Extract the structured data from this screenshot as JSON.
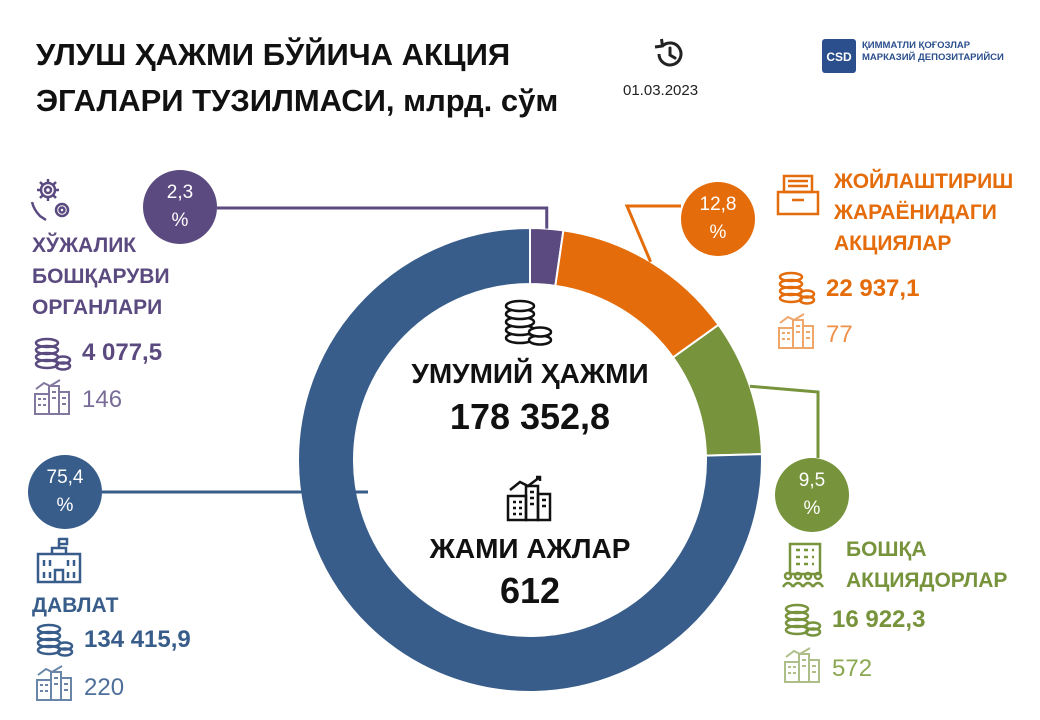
{
  "header": {
    "title_line1": "УЛУШ ҲАЖМИ БЎЙИЧА АКЦИЯ",
    "title_line2": "ЭГАЛАРИ ТУЗИЛМАСИ, млрд. сўм",
    "date": "01.03.2023",
    "logo_line1": "ҚИММАТЛИ ҚОҒОЗЛАР",
    "logo_line2": "МАРКАЗИЙ ДЕПОЗИТАРИЙСИ",
    "logo_mark": "CSD"
  },
  "center": {
    "volume_label": "УМУМИЙ ҲАЖМИ",
    "volume_value": "178 352,8",
    "shares_label": "ЖАМИ АЖЛАР",
    "shares_value": "612"
  },
  "categories": {
    "economic": {
      "percent_num": "2,3",
      "percent_sign": "%",
      "label_1": "ХЎЖАЛИК",
      "label_2": "БОШҚАРУВИ",
      "label_3": "ОРГАНЛАРИ",
      "amount": "4 077,5",
      "count": "146",
      "color": "#5b4a7f"
    },
    "placement": {
      "percent_num": "12,8",
      "percent_sign": "%",
      "label_1": "ЖОЙЛАШТИРИШ",
      "label_2": "ЖАРАЁНИДАГИ",
      "label_3": "АКЦИЯЛАР",
      "amount": "22 937,1",
      "count": "77",
      "color": "#e46c0a"
    },
    "other": {
      "percent_num": "9,5",
      "percent_sign": "%",
      "label_1": "БОШҚА",
      "label_2": "АКЦИЯДОРЛАР",
      "amount": "16 922,3",
      "count": "572",
      "color": "#77933c"
    },
    "state": {
      "percent_num": "75,4",
      "percent_sign": "%",
      "label_1": "ДАВЛАТ",
      "amount": "134 415,9",
      "count": "220",
      "color": "#385d8a"
    }
  },
  "chart_data": {
    "type": "pie",
    "title": "УЛУШ ҲАЖМИ БЎЙИЧА АКЦИЯ ЭГАЛАРИ ТУЗИЛМАСИ, млрд. сўм",
    "categories": [
      "ХЎЖАЛИК БОШҚАРУВИ ОРГАНЛАРИ",
      "ЖОЙЛАШТИРИШ ЖАРАЁНИДАГИ АКЦИЯЛАР",
      "БОШҚА АКЦИЯДОРЛАР",
      "ДАВЛАТ"
    ],
    "values": [
      2.3,
      12.8,
      9.5,
      75.4
    ],
    "amounts": [
      4077.5,
      22937.1,
      16922.3,
      134415.9
    ],
    "counts": [
      146,
      77,
      572,
      220
    ],
    "colors": [
      "#5b4a7f",
      "#e46c0a",
      "#77933c",
      "#385d8a"
    ],
    "total_amount": 178352.8,
    "total_count": 612
  }
}
